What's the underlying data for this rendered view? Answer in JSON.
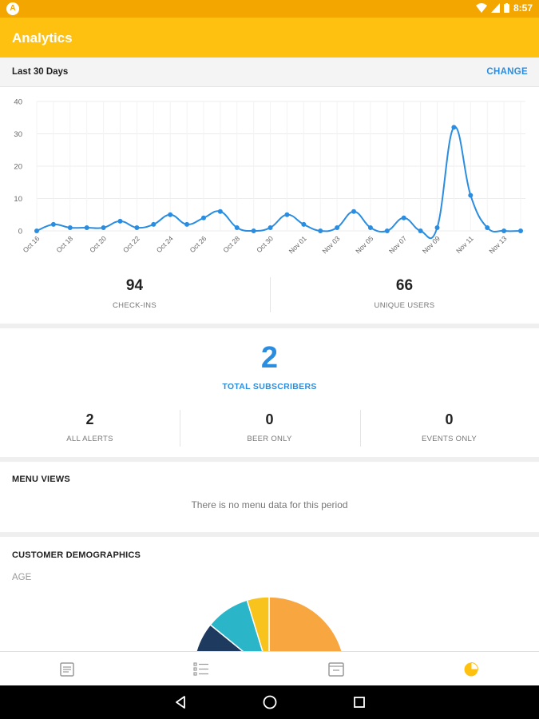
{
  "status_bar": {
    "time": "8:57"
  },
  "app_bar": {
    "title": "Analytics"
  },
  "range": {
    "label": "Last 30 Days",
    "change_label": "CHANGE"
  },
  "stats": {
    "checkins": {
      "value": "94",
      "label": "CHECK-INS"
    },
    "unique_users": {
      "value": "66",
      "label": "UNIQUE USERS"
    }
  },
  "subscribers": {
    "total": "2",
    "total_label": "TOTAL SUBSCRIBERS",
    "all_alerts": {
      "value": "2",
      "label": "ALL ALERTS"
    },
    "beer_only": {
      "value": "0",
      "label": "BEER ONLY"
    },
    "events_only": {
      "value": "0",
      "label": "EVENTS ONLY"
    }
  },
  "menu_views": {
    "title": "MENU VIEWS",
    "empty_message": "There is no menu data for this period"
  },
  "demographics": {
    "title": "CUSTOMER DEMOGRAPHICS",
    "age_label": "AGE"
  },
  "bottom_nav": {
    "items": [
      {
        "icon": "list-doc-icon",
        "active": false
      },
      {
        "icon": "checklist-icon",
        "active": false
      },
      {
        "icon": "calendar-icon",
        "active": false
      },
      {
        "icon": "pie-chart-icon",
        "active": true
      }
    ]
  },
  "colors": {
    "accent": "#2b8de0",
    "app_bar": "#fec110",
    "status_bar": "#f3a600",
    "pie_orange": "#f8a63f",
    "pie_navy": "#1e3a5f",
    "pie_teal": "#2bb5c9",
    "pie_yellow": "#f7c31c"
  },
  "chart_data": {
    "type": "line",
    "ylim": [
      0,
      40
    ],
    "yticks": [
      0,
      10,
      20,
      30,
      40
    ],
    "x_tick_labels": [
      "Oct 16",
      "Oct 18",
      "Oct 20",
      "Oct 22",
      "Oct 24",
      "Oct 26",
      "Oct 28",
      "Oct 30",
      "Nov 01",
      "Nov 03",
      "Nov 05",
      "Nov 07",
      "Nov 09",
      "Nov 11",
      "Nov 13"
    ],
    "x": [
      "Oct 16",
      "Oct 17",
      "Oct 18",
      "Oct 19",
      "Oct 20",
      "Oct 21",
      "Oct 22",
      "Oct 23",
      "Oct 24",
      "Oct 25",
      "Oct 26",
      "Oct 27",
      "Oct 28",
      "Oct 29",
      "Oct 30",
      "Oct 31",
      "Nov 01",
      "Nov 02",
      "Nov 03",
      "Nov 04",
      "Nov 05",
      "Nov 06",
      "Nov 07",
      "Nov 08",
      "Nov 09",
      "Nov 10",
      "Nov 11",
      "Nov 12",
      "Nov 13",
      "Nov 14"
    ],
    "values": [
      0,
      2,
      1,
      1,
      1,
      3,
      1,
      2,
      5,
      2,
      4,
      6,
      1,
      0,
      1,
      5,
      2,
      0,
      1,
      6,
      1,
      0,
      4,
      0,
      1,
      32,
      11,
      1,
      0,
      0
    ],
    "grid": true
  },
  "pie_data": {
    "type": "pie",
    "slices": [
      {
        "label": "",
        "value": 44,
        "color": "#f8a63f"
      },
      {
        "label": "",
        "value": 3,
        "color": "#f4f4f4"
      },
      {
        "label": "",
        "value": 26,
        "color": "#1e3a5f"
      },
      {
        "label": "",
        "value": 8,
        "color": "#2bb5c9"
      },
      {
        "label": "",
        "value": 4,
        "color": "#f7c31c"
      }
    ]
  }
}
